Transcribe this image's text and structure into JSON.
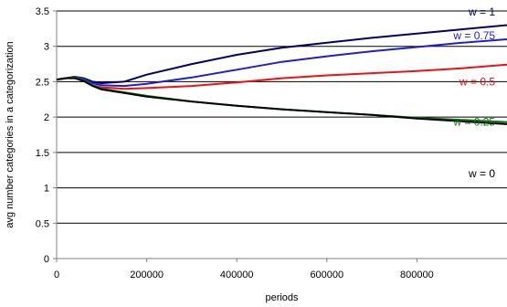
{
  "chart_data": {
    "type": "line",
    "xlabel": "periods",
    "ylabel": "avg number categories in a categorization",
    "xlim": [
      0,
      1000000
    ],
    "ylim": [
      0,
      3.5
    ],
    "x_ticks": [
      0,
      200000,
      400000,
      600000,
      800000
    ],
    "x_tick_labels": [
      "0",
      "200000",
      "400000",
      "600000",
      "800000"
    ],
    "y_ticks": [
      0,
      0.5,
      1,
      1.5,
      2,
      2.5,
      3,
      3.5
    ],
    "y_tick_labels": [
      "0",
      "0.5",
      "1",
      "1.5",
      "2",
      "2.5",
      "3",
      "3.5"
    ],
    "grid": "horizontal",
    "legend": "inline labels at right end of each line",
    "series": [
      {
        "name": "w = 1",
        "color": "#000066",
        "label_at": [
          990000,
          3.49
        ],
        "x": [
          0,
          20000,
          40000,
          60000,
          80000,
          100000,
          150000,
          200000,
          300000,
          400000,
          500000,
          600000,
          700000,
          800000,
          900000,
          1000000
        ],
        "y": [
          2.53,
          2.55,
          2.57,
          2.55,
          2.5,
          2.48,
          2.5,
          2.6,
          2.75,
          2.88,
          2.98,
          3.05,
          3.12,
          3.18,
          3.24,
          3.3
        ]
      },
      {
        "name": "w = 0.75",
        "color": "#1f1fcc",
        "label_at": [
          990000,
          3.15
        ],
        "x": [
          0,
          20000,
          40000,
          60000,
          80000,
          100000,
          150000,
          200000,
          300000,
          400000,
          500000,
          600000,
          700000,
          800000,
          900000,
          1000000
        ],
        "y": [
          2.53,
          2.55,
          2.57,
          2.54,
          2.48,
          2.45,
          2.44,
          2.47,
          2.56,
          2.67,
          2.78,
          2.86,
          2.93,
          2.99,
          3.05,
          3.1
        ]
      },
      {
        "name": "w = 0.5",
        "color": "#ee1111",
        "label_at": [
          990000,
          2.5
        ],
        "x": [
          0,
          20000,
          40000,
          60000,
          80000,
          100000,
          150000,
          200000,
          300000,
          400000,
          500000,
          600000,
          700000,
          800000,
          900000,
          1000000
        ],
        "y": [
          2.53,
          2.55,
          2.56,
          2.52,
          2.45,
          2.42,
          2.4,
          2.41,
          2.44,
          2.49,
          2.55,
          2.59,
          2.62,
          2.65,
          2.69,
          2.74
        ]
      },
      {
        "name": "w = 0.25",
        "color": "#117711",
        "label_at": [
          990000,
          1.93
        ],
        "x": [
          0,
          20000,
          40000,
          60000,
          80000,
          100000,
          150000,
          200000,
          300000,
          400000,
          500000,
          600000,
          700000,
          800000,
          900000,
          1000000
        ],
        "y": [
          2.53,
          2.55,
          2.56,
          2.52,
          2.45,
          2.4,
          2.35,
          2.3,
          2.22,
          2.16,
          2.11,
          2.07,
          2.03,
          1.99,
          1.96,
          1.93
        ]
      },
      {
        "name": "w = 0",
        "color": "#000000",
        "label_at": [
          990000,
          1.2
        ],
        "x": [
          0,
          20000,
          40000,
          60000,
          80000,
          100000,
          150000,
          200000,
          300000,
          400000,
          500000,
          600000,
          700000,
          800000,
          900000,
          1000000
        ],
        "y": [
          2.53,
          2.55,
          2.55,
          2.51,
          2.44,
          2.39,
          2.34,
          2.29,
          2.22,
          2.16,
          2.11,
          2.07,
          2.03,
          1.98,
          1.94,
          1.9
        ]
      }
    ]
  }
}
